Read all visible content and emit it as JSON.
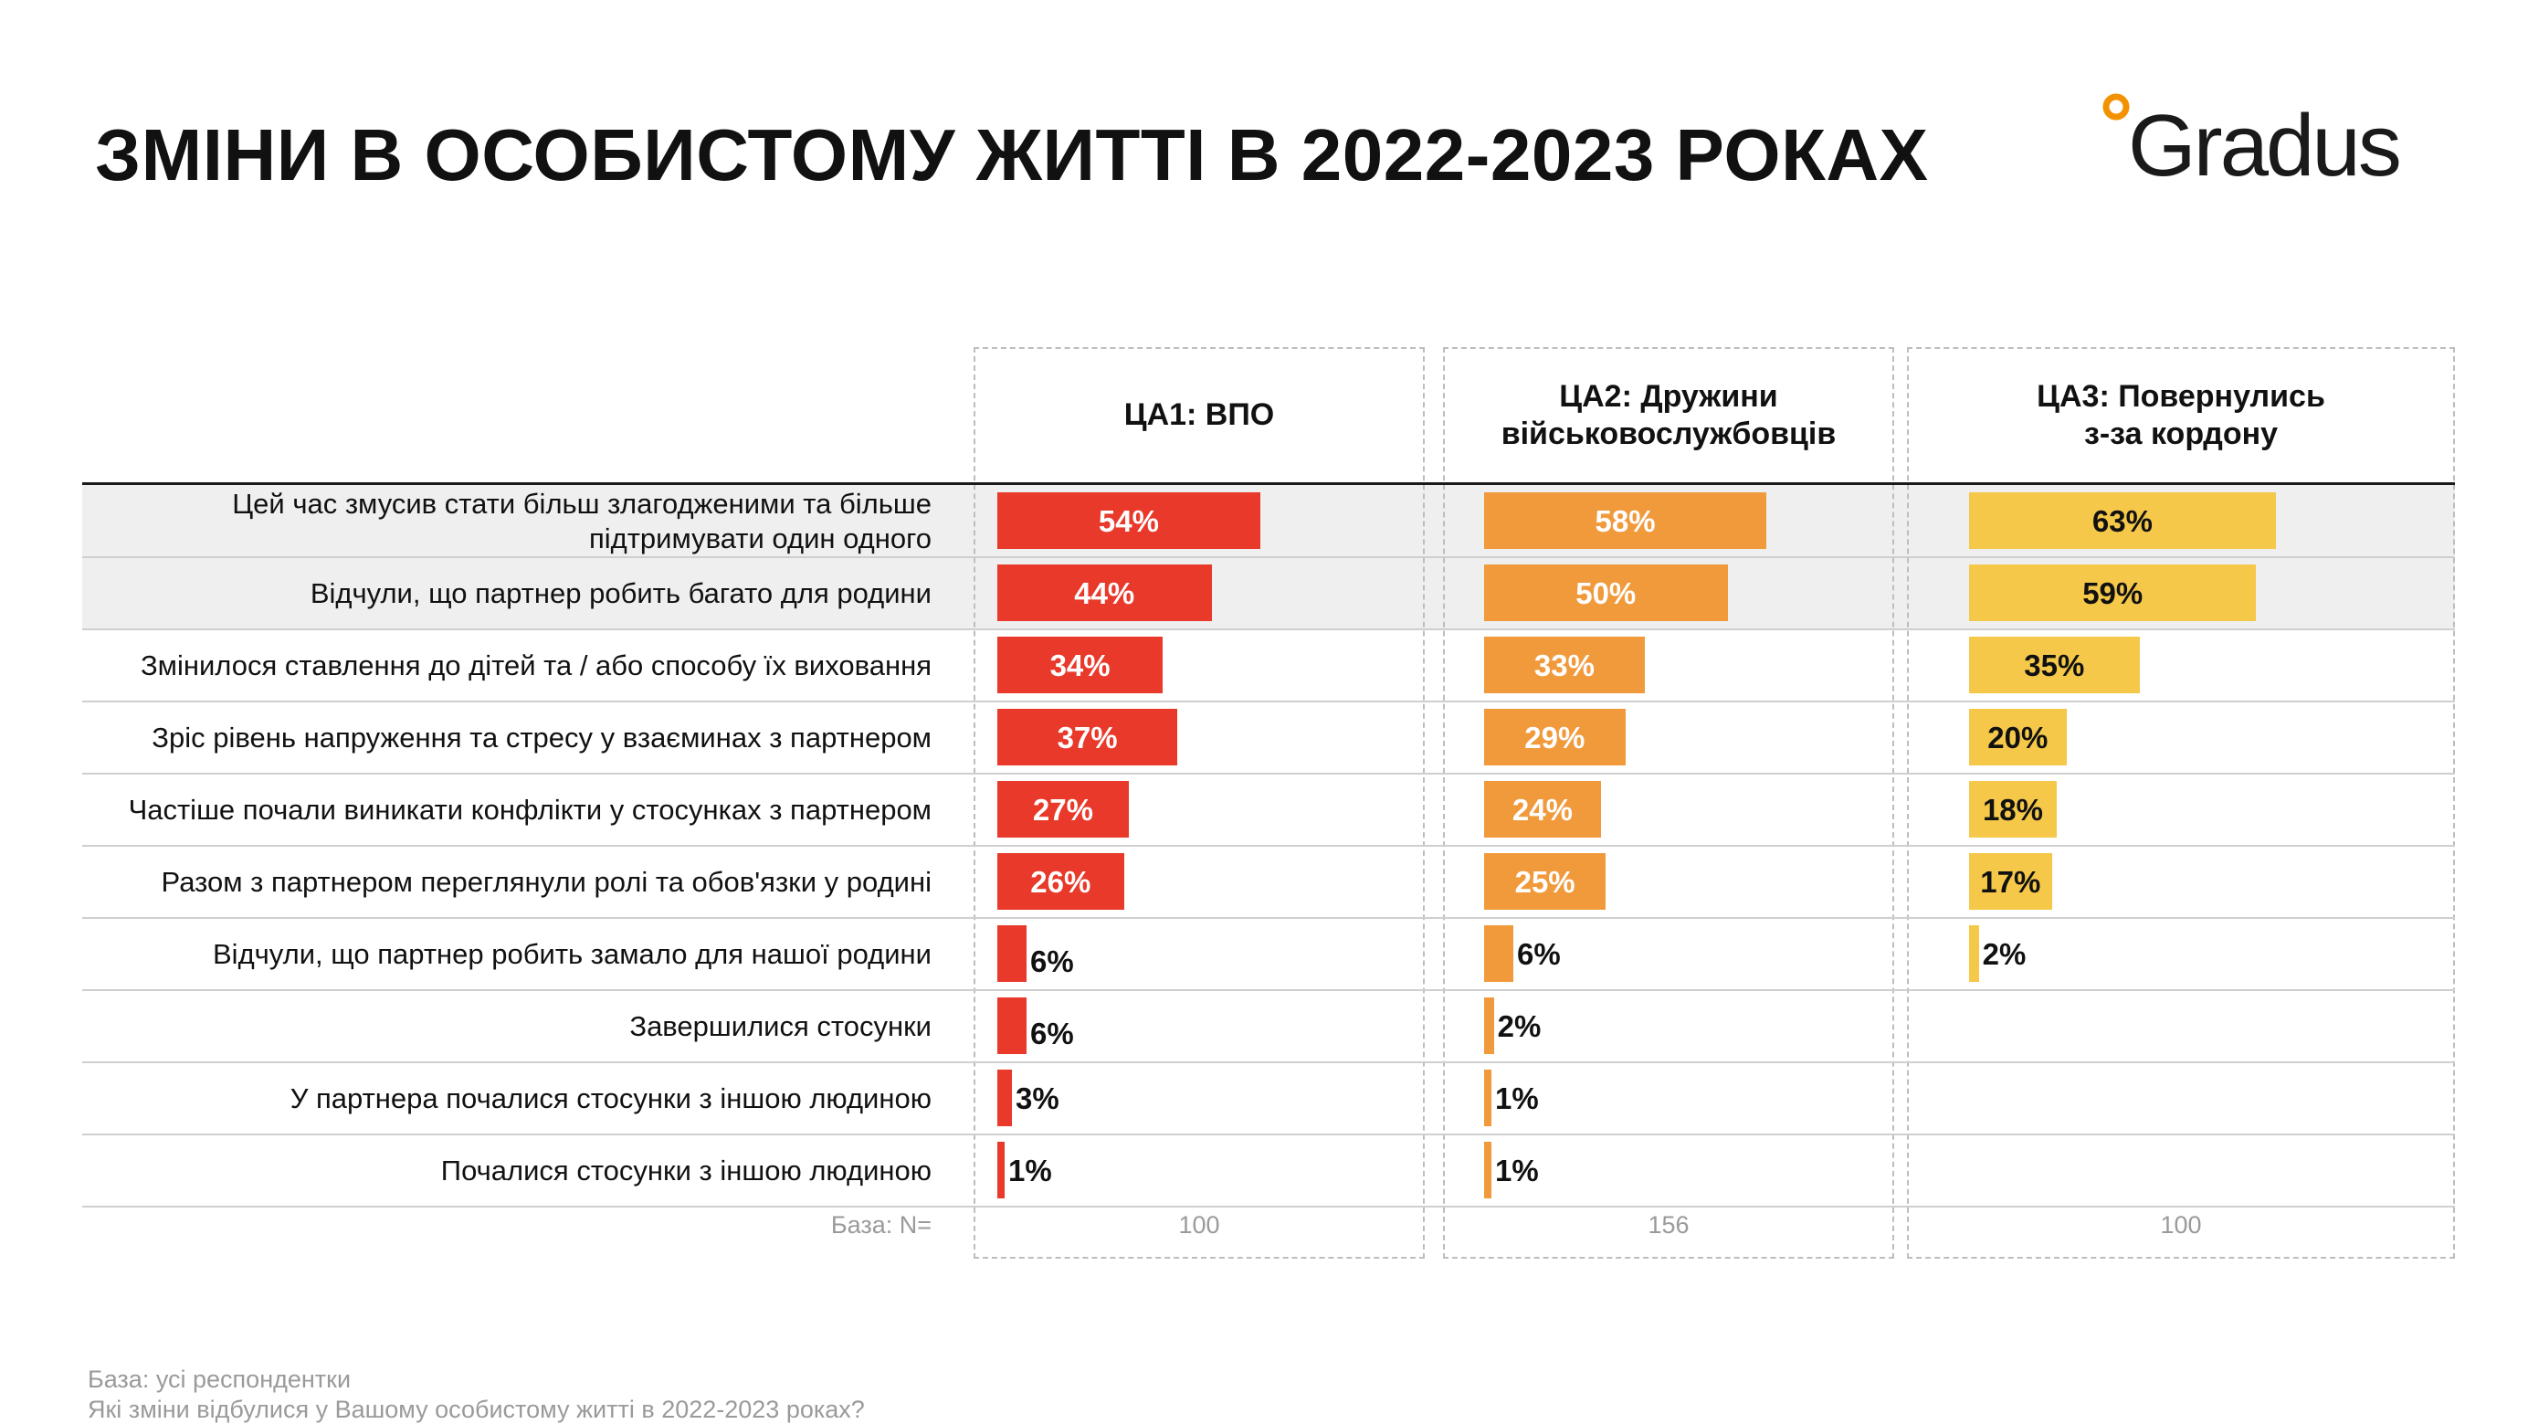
{
  "title": "ЗМІНИ В ОСОБИСТОМУ ЖИТТІ В 2022-2023 РОКАХ",
  "logo": {
    "text": "Gradus",
    "dot_color": "#f39200"
  },
  "colors": {
    "ca1": "#e8392a",
    "ca2": "#f19a3c",
    "ca3": "#f5c84a",
    "shade": "#efefef"
  },
  "base_label": "База: N=",
  "footnote": {
    "line1": "База: усі респондентки",
    "line2": "Які зміни відбулися у Вашому особистому житті в 2022-2023 роках?"
  },
  "chart_data": {
    "type": "bar",
    "orientation": "horizontal",
    "value_unit": "%",
    "categories": [
      "Цей час змусив стати більш злагодженими та більше підтримувати один одного",
      "Відчули, що партнер робить багато для родини",
      "Змінилося ставлення до дітей та / або способу їх виховання",
      "Зріс рівень напруження та стресу у взаєминах з партнером",
      "Частіше почали виникати конфлікти у стосунках з партнером",
      "Разом з партнером переглянули ролі та обов'язки у родині",
      "Відчули, що партнер робить замало для нашої родини",
      "Завершилися стосунки",
      "У партнера почалися стосунки з іншою людиною",
      "Почалися стосунки з іншою людиною"
    ],
    "shaded_rows": [
      0,
      1
    ],
    "series": [
      {
        "name": "ЦА1: ВПО",
        "color": "#e8392a",
        "base": "100",
        "values": [
          54,
          44,
          34,
          37,
          27,
          26,
          6,
          6,
          3,
          1
        ]
      },
      {
        "name": "ЦА2: Дружини військовослужбовців",
        "color": "#f19a3c",
        "base": "156",
        "values": [
          58,
          50,
          33,
          29,
          24,
          25,
          6,
          2,
          1,
          1
        ]
      },
      {
        "name": "ЦА3: Повернулись з-за кордону",
        "color": "#f5c84a",
        "base": "100",
        "values": [
          63,
          59,
          35,
          20,
          18,
          17,
          2,
          null,
          null,
          null
        ]
      }
    ]
  }
}
